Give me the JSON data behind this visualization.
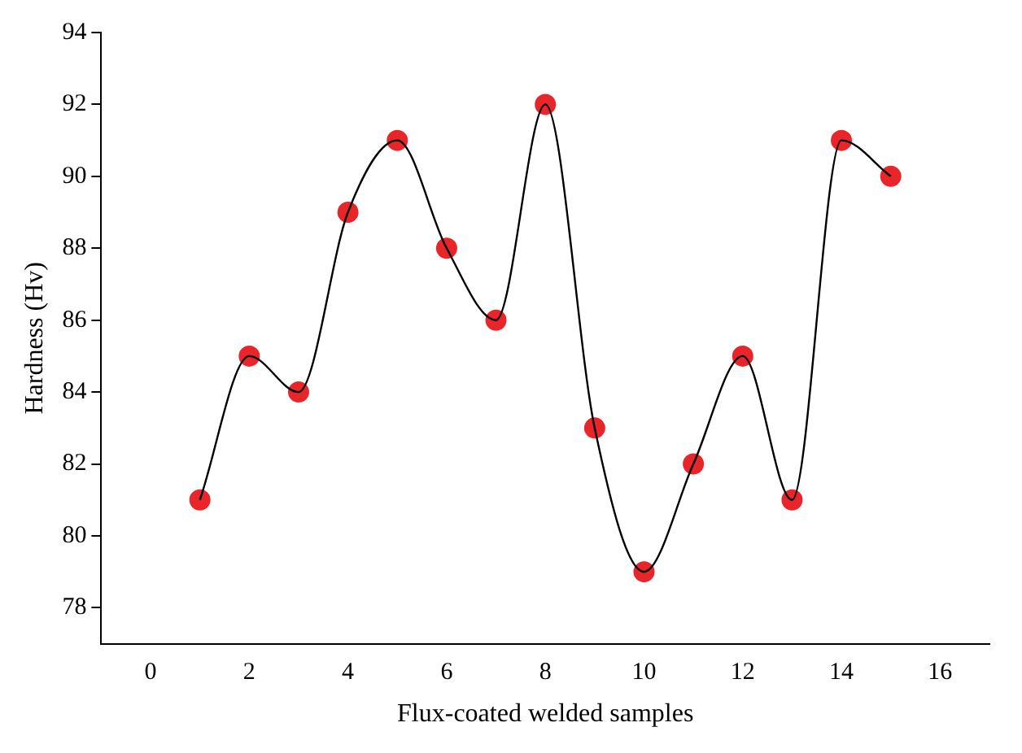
{
  "chart_data": {
    "type": "scatter",
    "xlabel": "Flux-coated welded samples",
    "ylabel": "Hardness (Hv)",
    "x": [
      1,
      2,
      3,
      4,
      5,
      6,
      7,
      8,
      9,
      10,
      11,
      12,
      13,
      14,
      15
    ],
    "series": [
      {
        "type": "line",
        "color": "#000000",
        "marker": "none",
        "x": [
          1,
          2,
          3,
          4,
          5,
          6,
          7,
          8,
          9,
          10,
          11,
          12,
          13,
          14,
          15
        ],
        "values": [
          81,
          85,
          84,
          89,
          91,
          88,
          86,
          92,
          83,
          79,
          82,
          85,
          81,
          91,
          90
        ]
      },
      {
        "type": "scatter",
        "color": "#e8262a",
        "marker": "circle",
        "values": [
          81,
          85,
          84,
          89,
          91,
          88,
          86,
          92,
          83,
          79,
          82,
          85,
          81,
          91,
          90
        ]
      }
    ],
    "xlim": [
      -1,
      17
    ],
    "xticks": [
      0,
      2,
      4,
      6,
      8,
      10,
      12,
      14,
      16
    ],
    "ylim": [
      77,
      94
    ],
    "yticks": [
      78,
      80,
      82,
      84,
      86,
      88,
      90,
      92,
      94
    ],
    "grid": false,
    "legend": false
  }
}
